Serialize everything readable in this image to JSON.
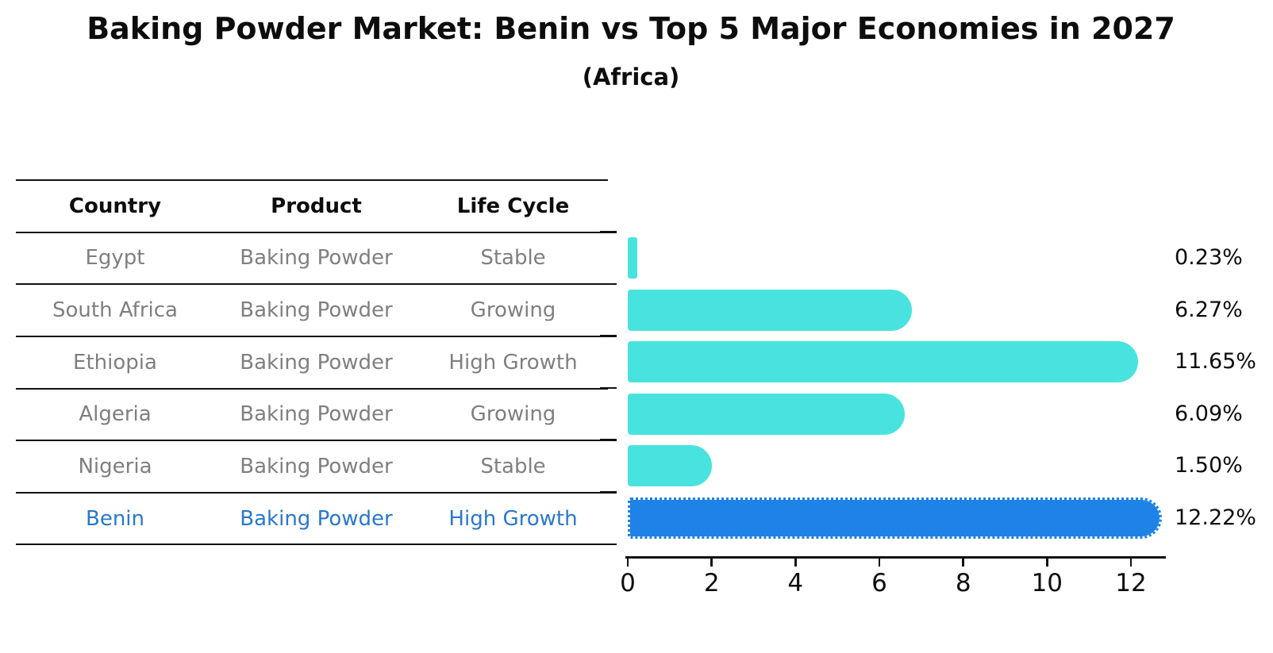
{
  "title": "Baking Powder Market: Benin vs Top 5 Major Economies in 2027",
  "subtitle": "(Africa)",
  "table": {
    "headers": [
      "Country",
      "Product",
      "Life Cycle"
    ],
    "rows": [
      {
        "country": "Egypt",
        "product": "Baking Powder",
        "life_cycle": "Stable",
        "highlight": false
      },
      {
        "country": "South Africa",
        "product": "Baking Powder",
        "life_cycle": "Growing",
        "highlight": false
      },
      {
        "country": "Ethiopia",
        "product": "Baking Powder",
        "life_cycle": "High Growth",
        "highlight": false
      },
      {
        "country": "Algeria",
        "product": "Baking Powder",
        "life_cycle": "Growing",
        "highlight": false
      },
      {
        "country": "Nigeria",
        "product": "Baking Powder",
        "life_cycle": "Stable",
        "highlight": false
      },
      {
        "country": "Benin",
        "product": "Baking Powder",
        "life_cycle": "High Growth",
        "highlight": true
      }
    ]
  },
  "chart_data": {
    "type": "bar",
    "orientation": "horizontal",
    "title": "Baking Powder Market: Benin vs Top 5 Major Economies in 2027",
    "subtitle": "(Africa)",
    "categories": [
      "Egypt",
      "South Africa",
      "Ethiopia",
      "Algeria",
      "Nigeria",
      "Benin"
    ],
    "values": [
      0.23,
      6.27,
      11.65,
      6.09,
      1.5,
      12.22
    ],
    "value_labels": [
      "0.23%",
      "6.27%",
      "11.65%",
      "6.09%",
      "1.50%",
      "12.22%"
    ],
    "xticks": [
      0,
      2,
      4,
      6,
      8,
      10,
      12
    ],
    "xlim": [
      0,
      12.85
    ],
    "highlight_index": 5,
    "grid": false,
    "legend": false
  },
  "colors": {
    "bar_default": "#49E3DF",
    "bar_highlight": "#1E82E6",
    "row_text": "#7F7F7F",
    "highlight_text": "#2878CE",
    "axis": "#111111"
  }
}
